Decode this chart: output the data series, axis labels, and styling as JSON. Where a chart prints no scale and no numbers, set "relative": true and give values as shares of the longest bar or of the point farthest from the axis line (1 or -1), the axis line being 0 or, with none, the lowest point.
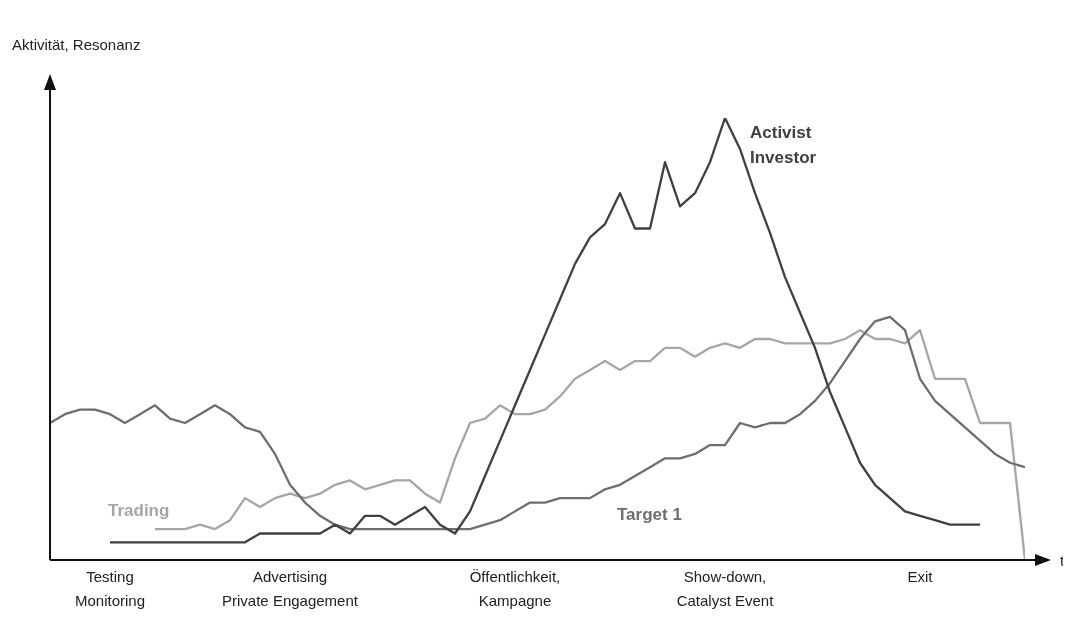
{
  "chart_data": {
    "type": "line",
    "relative": true,
    "xlabel": "t",
    "ylabel": "Aktivität, Resonanz",
    "marker": "none",
    "line_style": "solid",
    "categories": [
      null,
      null,
      null,
      null,
      "Testing\nMonitoring",
      null,
      null,
      null,
      null,
      null,
      null,
      null,
      null,
      null,
      null,
      null,
      "Advertising\nPrivate Engagement",
      null,
      null,
      null,
      null,
      null,
      null,
      null,
      null,
      null,
      null,
      null,
      null,
      null,
      null,
      "Öffentlichkeit,\nKampagne",
      null,
      null,
      null,
      null,
      null,
      null,
      null,
      null,
      null,
      null,
      null,
      null,
      null,
      "Show-down,\nCatalyst Event",
      null,
      null,
      null,
      null,
      null,
      null,
      null,
      null,
      null,
      null,
      null,
      null,
      "Exit",
      null,
      null,
      null,
      null,
      null,
      null,
      null
    ],
    "series": [
      {
        "name": "Trading",
        "color": "#a6a6a6",
        "values": [
          null,
          null,
          null,
          null,
          null,
          null,
          null,
          0.07,
          0.07,
          0.07,
          0.08,
          0.07,
          0.09,
          0.14,
          0.12,
          0.14,
          0.15,
          0.14,
          0.15,
          0.17,
          0.18,
          0.16,
          0.17,
          0.18,
          0.18,
          0.15,
          0.13,
          0.23,
          0.31,
          0.32,
          0.35,
          0.33,
          0.33,
          0.34,
          0.37,
          0.41,
          0.43,
          0.45,
          0.43,
          0.45,
          0.45,
          0.48,
          0.48,
          0.46,
          0.48,
          0.49,
          0.48,
          0.5,
          0.5,
          0.49,
          0.49,
          0.49,
          0.49,
          0.5,
          0.52,
          0.5,
          0.5,
          0.49,
          0.52,
          0.41,
          0.41,
          0.41,
          0.31,
          0.31,
          0.31,
          0
        ]
      },
      {
        "name": "Target 1",
        "color": "#6e6e6e",
        "values": [
          0.31,
          0.33,
          0.34,
          0.34,
          0.33,
          0.31,
          0.33,
          0.35,
          0.32,
          0.31,
          0.33,
          0.35,
          0.33,
          0.3,
          0.29,
          0.24,
          0.17,
          0.13,
          0.1,
          0.08,
          0.07,
          0.07,
          0.07,
          0.07,
          0.07,
          0.07,
          0.07,
          0.07,
          0.07,
          0.08,
          0.09,
          0.11,
          0.13,
          0.13,
          0.14,
          0.14,
          0.14,
          0.16,
          0.17,
          0.19,
          0.21,
          0.23,
          0.23,
          0.24,
          0.26,
          0.26,
          0.31,
          0.3,
          0.31,
          0.31,
          0.33,
          0.36,
          0.4,
          0.45,
          0.5,
          0.54,
          0.55,
          0.52,
          0.41,
          0.36,
          0.33,
          0.3,
          0.27,
          0.24,
          0.22,
          0.21
        ]
      },
      {
        "name": "Activist Investor",
        "color": "#404040",
        "values": [
          null,
          null,
          null,
          null,
          0.04,
          0.04,
          0.04,
          0.04,
          0.04,
          0.04,
          0.04,
          0.04,
          0.04,
          0.04,
          0.06,
          0.06,
          0.06,
          0.06,
          0.06,
          0.08,
          0.06,
          0.1,
          0.1,
          0.08,
          0.1,
          0.12,
          0.08,
          0.06,
          0.11,
          0.19,
          0.27,
          0.35,
          0.43,
          0.51,
          0.59,
          0.67,
          0.73,
          0.76,
          0.83,
          0.75,
          0.75,
          0.9,
          0.8,
          0.83,
          0.9,
          1,
          0.93,
          0.83,
          0.74,
          0.64,
          0.56,
          0.48,
          0.38,
          0.3,
          0.22,
          0.17,
          0.14,
          0.11,
          0.1,
          0.09,
          0.08,
          0.08,
          0.08,
          null,
          null,
          null
        ]
      }
    ]
  }
}
